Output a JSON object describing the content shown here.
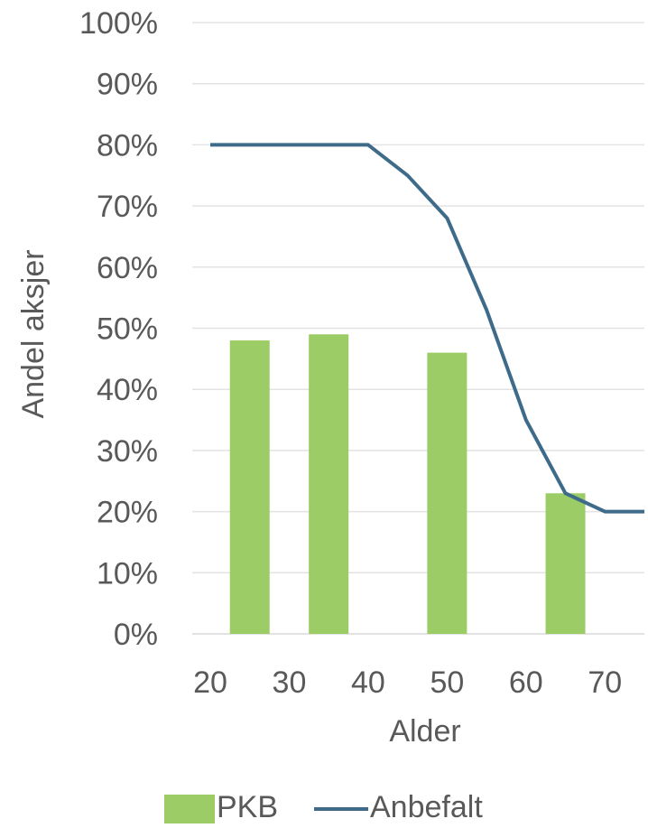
{
  "chart_data": {
    "type": "bar",
    "xlabel": "Alder",
    "ylabel": "Andel aksjer",
    "xlim": [
      20,
      75
    ],
    "ylim": [
      0,
      1
    ],
    "y_ticks": [
      0,
      0.1,
      0.2,
      0.3,
      0.4,
      0.5,
      0.6,
      0.7,
      0.8,
      0.9,
      1.0
    ],
    "y_tick_labels": [
      "0%",
      "10%",
      "20%",
      "30%",
      "40%",
      "50%",
      "60%",
      "70%",
      "80%",
      "90%",
      "100%"
    ],
    "x_ticks": [
      20,
      30,
      40,
      50,
      60,
      70
    ],
    "x_tick_labels": [
      "20",
      "30",
      "40",
      "50",
      "60",
      "70"
    ],
    "grid": true,
    "legend_position": "bottom",
    "series": [
      {
        "name": "PKB",
        "kind": "bar",
        "color": "#9ccc65",
        "points": [
          {
            "x": 25,
            "y": 0.48
          },
          {
            "x": 35,
            "y": 0.49
          },
          {
            "x": 50,
            "y": 0.46
          },
          {
            "x": 65,
            "y": 0.23
          }
        ]
      },
      {
        "name": "Anbefalt",
        "kind": "line",
        "color": "#3e6b8a",
        "points": [
          {
            "x": 20,
            "y": 0.8
          },
          {
            "x": 40,
            "y": 0.8
          },
          {
            "x": 45,
            "y": 0.75
          },
          {
            "x": 50,
            "y": 0.68
          },
          {
            "x": 55,
            "y": 0.53
          },
          {
            "x": 60,
            "y": 0.35
          },
          {
            "x": 65,
            "y": 0.23
          },
          {
            "x": 70,
            "y": 0.2
          },
          {
            "x": 75,
            "y": 0.2
          }
        ]
      }
    ]
  }
}
